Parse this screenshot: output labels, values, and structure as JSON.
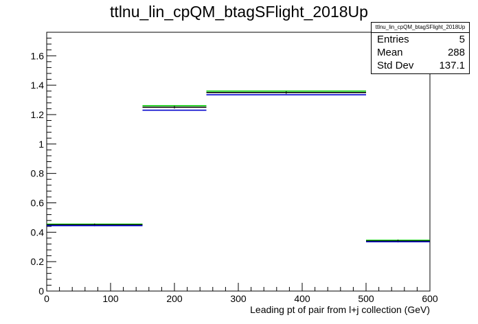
{
  "chart_data": {
    "type": "histogram",
    "title": "ttlnu_lin_cpQM_btagSFlight_2018Up",
    "xlabel": "Leading pt of pair from l+j collection (GeV)",
    "ylabel": "",
    "xlim": [
      0,
      600
    ],
    "ylim": [
      0,
      1.76
    ],
    "xticks": [
      0,
      100,
      200,
      300,
      400,
      500,
      600
    ],
    "yticks": [
      0,
      0.2,
      0.4,
      0.6,
      0.8,
      1,
      1.2,
      1.4,
      1.6
    ],
    "bin_edges": [
      0,
      150,
      250,
      500,
      600
    ],
    "series": [
      {
        "color": "#00cc00",
        "values": [
          0.455,
          1.26,
          1.36,
          0.345
        ]
      },
      {
        "color": "#000000",
        "values": [
          0.45,
          1.25,
          1.35,
          0.34
        ]
      },
      {
        "color": "#0000cc",
        "values": [
          0.445,
          1.23,
          1.335,
          0.335
        ]
      }
    ],
    "grid": false
  },
  "stats": {
    "name": "ttlnu_lin_cpQM_btagSFlight_2018Up",
    "rows": [
      {
        "label": "Entries",
        "value": "5"
      },
      {
        "label": "Mean",
        "value": "288"
      },
      {
        "label": "Std Dev",
        "value": "137.1"
      }
    ]
  }
}
